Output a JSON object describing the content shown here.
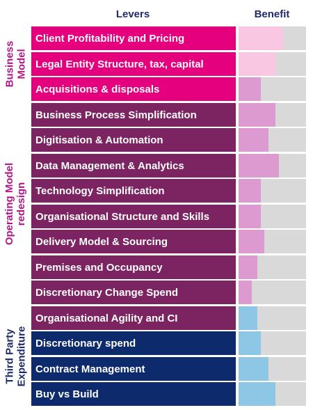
{
  "headers": {
    "levers": "Levers",
    "benefit": "Benefit"
  },
  "groups": [
    {
      "label_lines": [
        "Business",
        "Model"
      ],
      "color": "#b0178a",
      "rows": 3
    },
    {
      "label_lines": [
        "Operating Model",
        "redesign"
      ],
      "color": "#b0178a",
      "rows": 8
    },
    {
      "label_lines": [
        "Third Party",
        "Expenditure"
      ],
      "color": "#1f2a6b",
      "rows": 4
    }
  ],
  "chart_data": {
    "type": "bar",
    "orientation": "horizontal",
    "xlabel": "Benefit",
    "ylabel": "Levers",
    "xlim": [
      0,
      1
    ],
    "grid": false,
    "categories": [
      "Client Profitability and Pricing",
      "Legal Entity Structure, tax, capital",
      "Acquisitions & disposals",
      "Business Process Simplification",
      "Digitisation & Automation",
      "Data Management & Analytics",
      "Technology Simplification",
      "Organisational Structure and Skills",
      "Delivery Model & Sourcing",
      "Premises and Occupancy",
      "Discretionary Change Spend",
      "Organisational Agility and CI",
      "Discretionary spend",
      "Contract Management",
      "Buy vs Build"
    ],
    "values": [
      0.66,
      0.55,
      0.33,
      0.55,
      0.44,
      0.6,
      0.33,
      0.33,
      0.38,
      0.28,
      0.2,
      0.28,
      0.33,
      0.44,
      0.55
    ],
    "lever_colors": [
      "#e5007e",
      "#e5007e",
      "#e5007e",
      "#7b2461",
      "#7b2461",
      "#7b2461",
      "#7b2461",
      "#7b2461",
      "#7b2461",
      "#7b2461",
      "#7b2461",
      "#7b2461",
      "#0d2a6d",
      "#0d2a6d",
      "#0d2a6d"
    ],
    "bar_colors": [
      "#f9c7e1",
      "#f9c7e1",
      "#dd9ad0",
      "#dd9ad0",
      "#dd9ad0",
      "#dd9ad0",
      "#dd9ad0",
      "#dd9ad0",
      "#dd9ad0",
      "#dd9ad0",
      "#dd9ad0",
      "#8ec6e6",
      "#8ec6e6",
      "#8ec6e6",
      "#8ec6e6"
    ],
    "track_color": "#d9d9d9"
  }
}
